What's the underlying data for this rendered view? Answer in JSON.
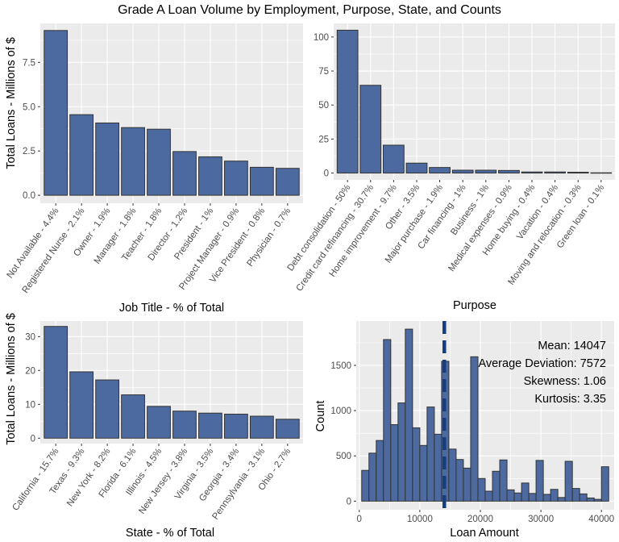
{
  "title": "Grade A Loan Volume by Employment, Purpose, State, and Counts",
  "colors": {
    "bar_fill": "#4d6aa0",
    "bar_stroke": "#333333",
    "panel_bg": "#ebebeb",
    "grid": "#ffffff",
    "mean_line": "#163d7d",
    "text": "#1a1a1a",
    "tick_text": "#4d4d4d"
  },
  "chart_data": [
    {
      "type": "bar",
      "categories": [
        "Not Available - 4.4%",
        "Registered Nurse - 2.1%",
        "Owner - 1.9%",
        "Manager - 1.8%",
        "Teacher - 1.8%",
        "Director - 1.2%",
        "President - 1%",
        "Project Manager - 0.9%",
        "Vice President - 0.8%",
        "Physician - 0.7%"
      ],
      "values": [
        9.3,
        4.55,
        4.08,
        3.82,
        3.73,
        2.47,
        2.17,
        1.93,
        1.58,
        1.52
      ],
      "xlabel": "Job Title - % of Total",
      "ylabel": "Total Loans - Millions of $",
      "ylim": [
        -0.45,
        9.7
      ],
      "yticks": [
        0,
        2.5,
        5,
        7.5
      ],
      "ytick_labels": [
        "0.0",
        "2.5",
        "5.0",
        "7.5"
      ],
      "grid": true
    },
    {
      "type": "bar",
      "categories": [
        "Debt consolidation - 50%",
        "Credit card refinancing - 30.7%",
        "Home improvement - 9.7%",
        "Other - 3.5%",
        "Major purchase - 1.9%",
        "Car financing - 1%",
        "Business - 1%",
        "Medical expenses - 0.9%",
        "Home buying - 0.4%",
        "Vacation - 0.4%",
        "Moving and relocation - 0.3%",
        "Green loan - 0.1%"
      ],
      "values": [
        105,
        64.5,
        20.5,
        7.3,
        4.1,
        2.1,
        2.1,
        1.9,
        0.8,
        0.8,
        0.6,
        0.2
      ],
      "xlabel": "Purpose",
      "ylabel": "",
      "ylim": [
        -5,
        110
      ],
      "yticks": [
        0,
        25,
        50,
        75,
        100
      ],
      "ytick_labels": [
        "0",
        "25",
        "50",
        "75",
        "100"
      ],
      "grid": true
    },
    {
      "type": "bar",
      "categories": [
        "California - 15.7%",
        "Texas - 9.3%",
        "New York - 8.2%",
        "Florida - 6.1%",
        "Illinois - 4.5%",
        "New Jersey - 3.8%",
        "Virginia - 3.5%",
        "Georgia - 3.4%",
        "Pennsylvania - 3.1%",
        "Ohio - 2.7%"
      ],
      "values": [
        33,
        19.6,
        17.2,
        12.8,
        9.4,
        8,
        7.4,
        7.1,
        6.5,
        5.6
      ],
      "xlabel": "State - % of Total",
      "ylabel": "Total Loans - Millions of $",
      "ylim": [
        -1.6,
        34.6
      ],
      "yticks": [
        0,
        10,
        20,
        30
      ],
      "ytick_labels": [
        "0",
        "10",
        "20",
        "30"
      ],
      "grid": true
    },
    {
      "type": "histogram",
      "bin_width": 1200,
      "bin_centers": [
        1000,
        2200,
        3400,
        4600,
        5800,
        7000,
        8200,
        9400,
        10600,
        11800,
        13000,
        14200,
        15400,
        16600,
        17800,
        19000,
        20200,
        21400,
        22600,
        23800,
        25000,
        26200,
        27400,
        28600,
        29800,
        31000,
        32200,
        33400,
        34600,
        35800,
        37000,
        38200,
        39400,
        40600
      ],
      "counts": [
        340,
        530,
        670,
        1785,
        845,
        1085,
        1900,
        810,
        615,
        1040,
        740,
        1545,
        575,
        460,
        365,
        1595,
        250,
        110,
        330,
        455,
        125,
        90,
        200,
        85,
        450,
        75,
        130,
        40,
        440,
        140,
        80,
        35,
        20,
        380
      ],
      "mean_line_x": 14047,
      "xlabel": "Loan Amount",
      "ylabel": "Count",
      "xlim": [
        -500,
        42100
      ],
      "ylim": [
        -95,
        1990
      ],
      "xticks": [
        0,
        10000,
        20000,
        30000,
        40000
      ],
      "xtick_labels": [
        "0",
        "10000",
        "20000",
        "30000",
        "40000"
      ],
      "yticks": [
        0,
        500,
        1000,
        1500
      ],
      "ytick_labels": [
        "0",
        "500",
        "1000",
        "1500"
      ],
      "annotations": [
        "Mean: 14047",
        "Average Deviation: 7572",
        "Skewness: 1.06",
        "Kurtosis: 3.35"
      ],
      "grid": true
    }
  ]
}
